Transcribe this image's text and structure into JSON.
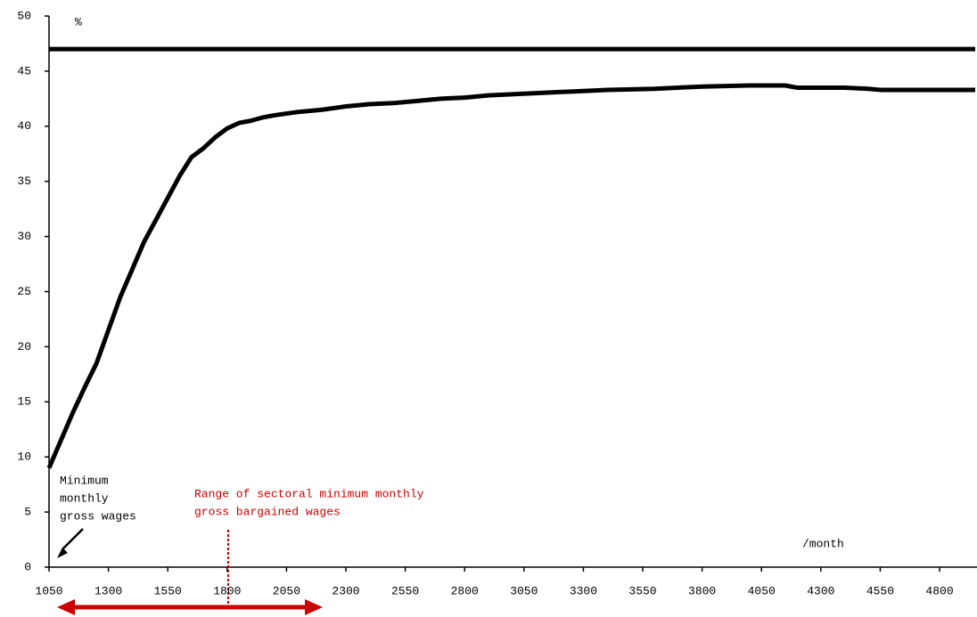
{
  "chart_data": {
    "type": "line",
    "y_unit": "%",
    "x_unit": "/month",
    "x": [
      1050,
      1100,
      1150,
      1200,
      1250,
      1300,
      1350,
      1400,
      1450,
      1500,
      1550,
      1600,
      1650,
      1700,
      1750,
      1800,
      1850,
      1900,
      1950,
      2000,
      2100,
      2200,
      2300,
      2400,
      2500,
      2600,
      2700,
      2800,
      2900,
      3000,
      3200,
      3400,
      3600,
      3800,
      4000,
      4150,
      4200,
      4400,
      4500,
      4550,
      4950
    ],
    "series": [
      {
        "color": "#000000",
        "values": [
          47,
          47,
          47,
          47,
          47,
          47,
          47,
          47,
          47,
          47,
          47,
          47,
          47,
          47,
          47,
          47,
          47,
          47,
          47,
          47,
          47,
          47,
          47,
          47,
          47,
          47,
          47,
          47,
          47,
          47,
          47,
          47,
          47,
          47,
          47,
          47,
          47,
          47,
          47,
          47,
          47
        ]
      },
      {
        "color": "#000000",
        "values": [
          9,
          11.5,
          14,
          16.3,
          18.5,
          21.5,
          24.5,
          27,
          29.5,
          31.5,
          33.5,
          35.5,
          37.2,
          38,
          39,
          39.8,
          40.3,
          40.5,
          40.8,
          41,
          41.3,
          41.5,
          41.8,
          42,
          42.1,
          42.3,
          42.5,
          42.6,
          42.8,
          42.9,
          43.1,
          43.3,
          43.4,
          43.6,
          43.7,
          43.7,
          43.5,
          43.5,
          43.4,
          43.3,
          43.3
        ]
      }
    ],
    "xlim": [
      1050,
      4950
    ],
    "xticks": [
      1050,
      1300,
      1550,
      1800,
      2050,
      2300,
      2550,
      2800,
      3050,
      3300,
      3550,
      3800,
      4050,
      4300,
      4550,
      4800
    ],
    "ylim": [
      0,
      50
    ],
    "yticks": [
      0,
      5,
      10,
      15,
      20,
      25,
      30,
      35,
      40,
      45,
      50
    ],
    "annotations": [
      {
        "lines": [
          "Minimum",
          "monthly",
          "gross wages"
        ],
        "color": "#000000"
      },
      {
        "lines": [
          "Range of sectoral minimum monthly",
          "gross bargained wages"
        ],
        "color": "#cc0000"
      }
    ]
  }
}
